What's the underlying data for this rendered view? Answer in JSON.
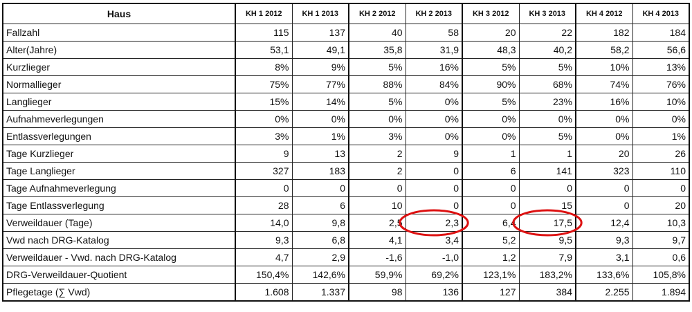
{
  "table": {
    "header_label": "Haus",
    "columns": [
      "KH 1 2012",
      "KH 1 2013",
      "KH 2 2012",
      "KH 2 2013",
      "KH 3 2012",
      "KH 3 2013",
      "KH 4 2012",
      "KH 4 2013"
    ],
    "rows": [
      {
        "label": "Fallzahl",
        "values": [
          "115",
          "137",
          "40",
          "58",
          "20",
          "22",
          "182",
          "184"
        ]
      },
      {
        "label": "Alter(Jahre)",
        "values": [
          "53,1",
          "49,1",
          "35,8",
          "31,9",
          "48,3",
          "40,2",
          "58,2",
          "56,6"
        ]
      },
      {
        "label": "Kurzlieger",
        "values": [
          "8%",
          "9%",
          "5%",
          "16%",
          "5%",
          "5%",
          "10%",
          "13%"
        ]
      },
      {
        "label": "Normallieger",
        "values": [
          "75%",
          "77%",
          "88%",
          "84%",
          "90%",
          "68%",
          "74%",
          "76%"
        ]
      },
      {
        "label": "Langlieger",
        "values": [
          "15%",
          "14%",
          "5%",
          "0%",
          "5%",
          "23%",
          "16%",
          "10%"
        ]
      },
      {
        "label": "Aufnahmeverlegungen",
        "values": [
          "0%",
          "0%",
          "0%",
          "0%",
          "0%",
          "0%",
          "0%",
          "0%"
        ]
      },
      {
        "label": "Entlassverlegungen",
        "values": [
          "3%",
          "1%",
          "3%",
          "0%",
          "0%",
          "5%",
          "0%",
          "1%"
        ]
      },
      {
        "label": "Tage Kurzlieger",
        "values": [
          "9",
          "13",
          "2",
          "9",
          "1",
          "1",
          "20",
          "26"
        ]
      },
      {
        "label": "Tage Langlieger",
        "values": [
          "327",
          "183",
          "2",
          "0",
          "6",
          "141",
          "323",
          "110"
        ]
      },
      {
        "label": "Tage Aufnahmeverlegung",
        "values": [
          "0",
          "0",
          "0",
          "0",
          "0",
          "0",
          "0",
          "0"
        ]
      },
      {
        "label": "Tage Entlassverlegung",
        "values": [
          "28",
          "6",
          "10",
          "0",
          "0",
          "15",
          "0",
          "20"
        ]
      },
      {
        "label": "Verweildauer (Tage)",
        "values": [
          "14,0",
          "9,8",
          "2,5",
          "2,3",
          "6,4",
          "17,5",
          "12,4",
          "10,3"
        ]
      },
      {
        "label": "Vwd nach DRG-Katalog",
        "values": [
          "9,3",
          "6,8",
          "4,1",
          "3,4",
          "5,2",
          "9,5",
          "9,3",
          "9,7"
        ]
      },
      {
        "label": "Verweildauer - Vwd. nach DRG-Katalog",
        "values": [
          "4,7",
          "2,9",
          "-1,6",
          "-1,0",
          "1,2",
          "7,9",
          "3,1",
          "0,6"
        ]
      },
      {
        "label": "DRG-Verweildauer-Quotient",
        "values": [
          "150,4%",
          "142,6%",
          "59,9%",
          "69,2%",
          "123,1%",
          "183,2%",
          "133,6%",
          "105,8%"
        ]
      },
      {
        "label": "Pflegetage (∑ Vwd)",
        "values": [
          "1.608",
          "1.337",
          "98",
          "136",
          "127",
          "384",
          "2.255",
          "1.894"
        ]
      }
    ],
    "highlights": [
      {
        "row": 11,
        "col": 3,
        "color": "#dd1111"
      },
      {
        "row": 11,
        "col": 5,
        "color": "#dd1111"
      }
    ]
  }
}
